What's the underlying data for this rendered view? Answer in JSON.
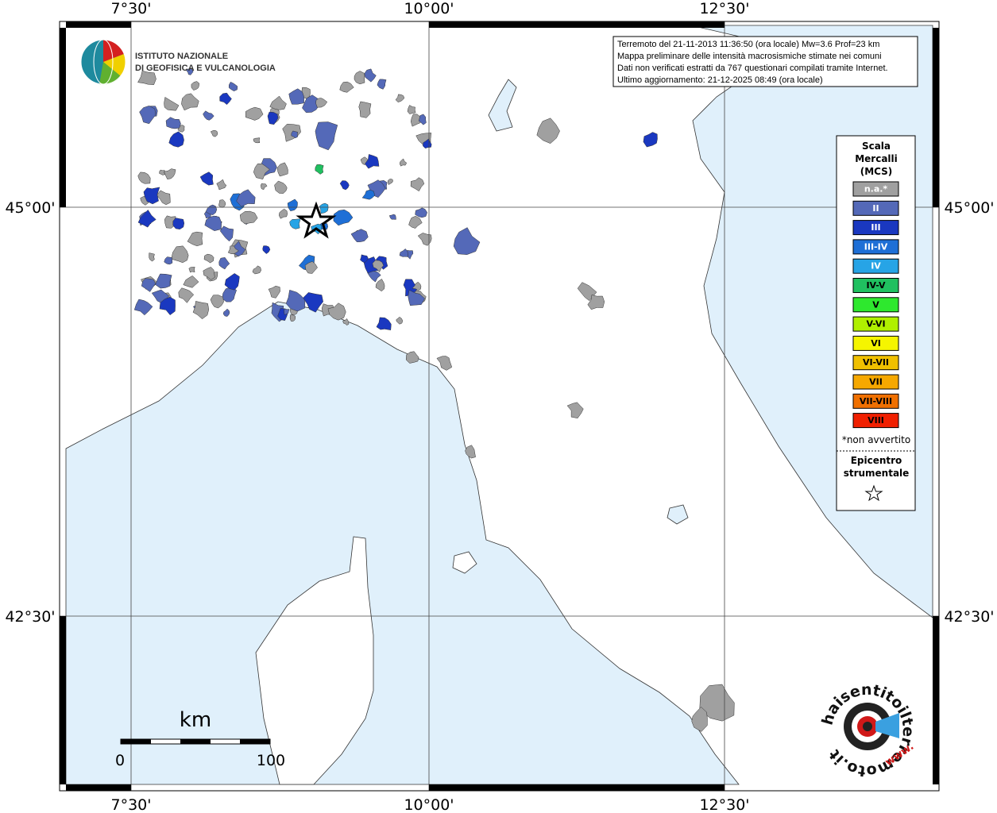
{
  "info_box": {
    "lines": [
      "Terremoto del 21-11-2013 11:36:50 (ora locale) Mw=3.6 Prof=23 km",
      "Mappa preliminare delle intensità macrosismiche stimate nei comuni",
      "Dati non verificati estratti da 767 questionari compilati tramite Internet.",
      "Ultimo aggiornamento: 21-12-2025 08:49 (ora locale)"
    ]
  },
  "institute_logo": {
    "lines": [
      "ISTITUTO NAZIONALE",
      "DI GEOFISICA E VULCANOLOGIA"
    ]
  },
  "longitude_labels": [
    "7°30'",
    "10°00'",
    "12°30'"
  ],
  "latitude_labels": [
    "45°00'",
    "42°30'"
  ],
  "legend": {
    "title": [
      "Scala",
      "Mercalli",
      "(MCS)"
    ],
    "items": [
      {
        "label": "n.a.*",
        "color": "#a0a0a0"
      },
      {
        "label": "II",
        "color": "#5469b8"
      },
      {
        "label": "III",
        "color": "#1a38c0"
      },
      {
        "label": "III-IV",
        "color": "#1e6fd6"
      },
      {
        "label": "IV",
        "color": "#27a4e6"
      },
      {
        "label": "IV-V",
        "color": "#20c060"
      },
      {
        "label": "V",
        "color": "#2ee82e"
      },
      {
        "label": "V-VI",
        "color": "#b0f000"
      },
      {
        "label": "VI",
        "color": "#f5f500"
      },
      {
        "label": "VI-VII",
        "color": "#f0c000"
      },
      {
        "label": "VII",
        "color": "#f6a800"
      },
      {
        "label": "VII-VIII",
        "color": "#f07000"
      },
      {
        "label": "VIII",
        "color": "#f02000"
      }
    ],
    "note": "*non avvertito",
    "epicenter": [
      "Epicentro",
      "strumentale"
    ]
  },
  "scale_bar": {
    "unit": "km",
    "start": "0",
    "end": "100"
  },
  "site_logo": {
    "text": "haisentitoilterremoto.it",
    "prefix": "www."
  }
}
